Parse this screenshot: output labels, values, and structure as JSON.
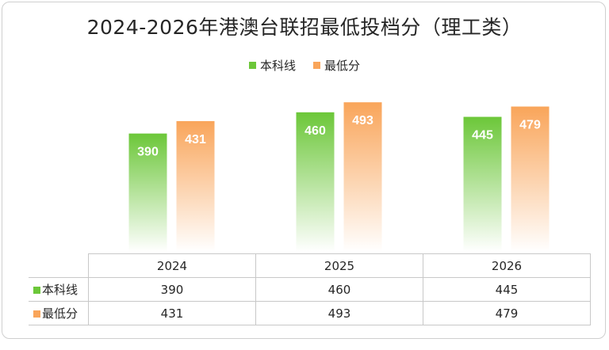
{
  "chart_data": {
    "type": "bar",
    "title": "2024-2026年港澳台联招最低投档分（理工类）",
    "categories": [
      "2024",
      "2025",
      "2026"
    ],
    "series": [
      {
        "name": "本科线",
        "values": [
          390,
          460,
          445
        ],
        "color": "#6cc739"
      },
      {
        "name": "最低分",
        "values": [
          431,
          493,
          479
        ],
        "color": "#f9a55a"
      }
    ],
    "ylim": [
      0,
      520
    ],
    "grid": false,
    "legend_position": "top",
    "data_table": true
  }
}
